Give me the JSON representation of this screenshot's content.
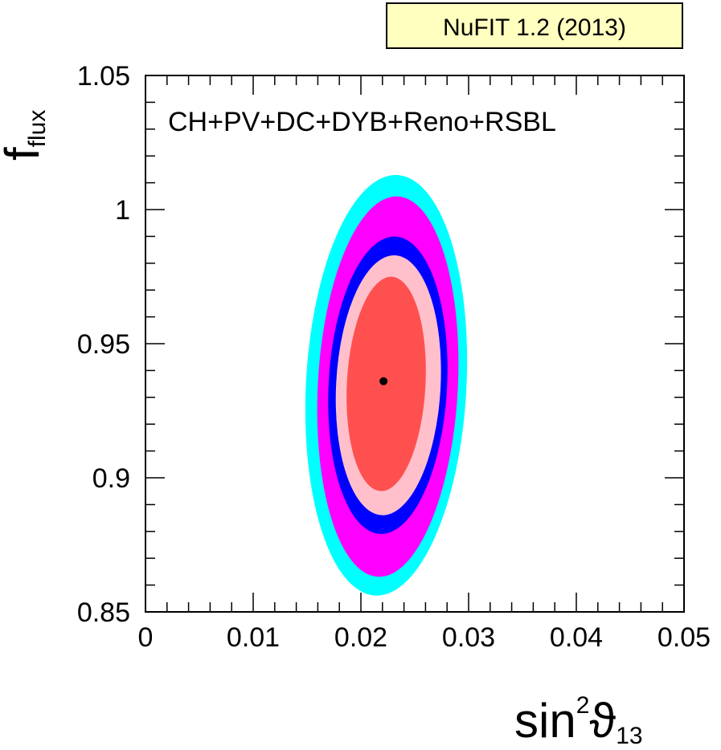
{
  "badge": {
    "text": "NuFIT 1.2 (2013)",
    "background": "#ffffc0"
  },
  "chart_data": {
    "type": "contour",
    "xlabel": {
      "main": "sin",
      "sup": "2",
      "symbol": "ϑ",
      "sub": "13"
    },
    "ylabel": {
      "main": "f",
      "sub": "flux"
    },
    "xlim": [
      0,
      0.05
    ],
    "ylim": [
      0.85,
      1.05
    ],
    "x_ticks": [
      "0",
      "0.01",
      "0.02",
      "0.03",
      "0.04",
      "0.05"
    ],
    "y_ticks": [
      "0.85",
      "0.9",
      "0.95",
      "1",
      "1.05"
    ],
    "annotation": "CH+PV+DC+DYB+Reno+RSBL",
    "best_fit": {
      "x": 0.0221,
      "y": 0.936
    },
    "contours": [
      {
        "color": "#00ffff",
        "x_min": 0.0149,
        "x_max": 0.0298,
        "y_min": 0.856,
        "y_max": 1.013
      },
      {
        "color": "#ff00ff",
        "x_min": 0.016,
        "x_max": 0.029,
        "y_min": 0.863,
        "y_max": 1.005
      },
      {
        "color": "#0000ff",
        "x_min": 0.017,
        "x_max": 0.028,
        "y_min": 0.879,
        "y_max": 0.99
      },
      {
        "color": "#ffc0cb",
        "x_min": 0.0177,
        "x_max": 0.0274,
        "y_min": 0.886,
        "y_max": 0.983
      },
      {
        "color": "#ff5050",
        "x_min": 0.0187,
        "x_max": 0.026,
        "y_min": 0.895,
        "y_max": 0.975
      }
    ]
  }
}
